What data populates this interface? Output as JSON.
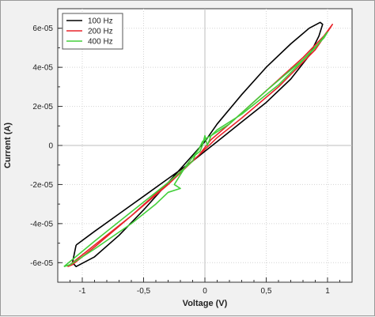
{
  "chart_data": {
    "type": "line",
    "title": "",
    "xlabel": "Voltage (V)",
    "ylabel": "Current (A)",
    "xlim": [
      -1.2,
      1.2
    ],
    "ylim": [
      -7e-05,
      7e-05
    ],
    "grid": true,
    "legend_position": "top-left",
    "x_ticks": [
      {
        "value": -1,
        "label": "-1"
      },
      {
        "value": -0.5,
        "label": "-0,5"
      },
      {
        "value": 0,
        "label": "0"
      },
      {
        "value": 0.5,
        "label": "0,5"
      },
      {
        "value": 1,
        "label": "1"
      }
    ],
    "y_ticks": [
      {
        "value": 6e-05,
        "label": "6e-05"
      },
      {
        "value": 4e-05,
        "label": "4e-05"
      },
      {
        "value": 2e-05,
        "label": "2e-05"
      },
      {
        "value": 0,
        "label": "0"
      },
      {
        "value": -2e-05,
        "label": "-2e-05"
      },
      {
        "value": -4e-05,
        "label": "-4e-05"
      },
      {
        "value": -6e-05,
        "label": "-6e-05"
      }
    ],
    "series": [
      {
        "name": "100 Hz",
        "color": "#000000",
        "x": [
          -1.05,
          -0.9,
          -0.7,
          -0.5,
          -0.3,
          -0.1,
          0,
          0.1,
          0.3,
          0.5,
          0.7,
          0.85,
          0.93,
          0.96,
          0.94,
          0.85,
          0.7,
          0.5,
          0.3,
          0.1,
          0,
          -0.1,
          -0.3,
          -0.5,
          -0.7,
          -0.9,
          -1.05,
          -1.08,
          -1.05
        ],
        "y": [
          -5.1e-05,
          -4.4e-05,
          -3.5e-05,
          -2.6e-05,
          -1.7e-05,
          -8e-06,
          -3e-06,
          2e-06,
          1.2e-05,
          2.2e-05,
          3.4e-05,
          4.6e-05,
          5.6e-05,
          6.2e-05,
          6.3e-05,
          6e-05,
          5.2e-05,
          4e-05,
          2.6e-05,
          1.1e-05,
          2e-06,
          -5e-06,
          -1.9e-05,
          -3.3e-05,
          -4.6e-05,
          -5.7e-05,
          -6.2e-05,
          -6e-05,
          -5.1e-05
        ]
      },
      {
        "name": "200 Hz",
        "color": "#e8232a",
        "x": [
          -1.12,
          -0.9,
          -0.6,
          -0.3,
          -0.1,
          0,
          0.1,
          0.3,
          0.6,
          0.9,
          1.02,
          1.04,
          0.97,
          0.8,
          0.5,
          0.2,
          0.05,
          0,
          -0.05,
          -0.3,
          -0.6,
          -0.9,
          -1.08,
          -1.12
        ],
        "y": [
          -6.2e-05,
          -5.1e-05,
          -3.6e-05,
          -2e-05,
          -8e-06,
          -2e-06,
          4e-06,
          1.4e-05,
          3e-05,
          4.9e-05,
          6e-05,
          6.2e-05,
          5.6e-05,
          4.5e-05,
          2.8e-05,
          1.1e-05,
          3e-06,
          -1e-06,
          -5e-06,
          -1.9e-05,
          -3.6e-05,
          -5.2e-05,
          -6.1e-05,
          -6.2e-05
        ]
      },
      {
        "name": "400 Hz",
        "color": "#43cf3a",
        "x": [
          -1.15,
          -0.9,
          -0.6,
          -0.3,
          -0.1,
          -0.08,
          -0.04,
          -0.02,
          0,
          0.02,
          0.05,
          0.1,
          0.3,
          0.6,
          0.9,
          1.0,
          0.97,
          0.8,
          0.5,
          0.2,
          0.05,
          0.02,
          -0.02,
          -0.05,
          -0.1,
          -0.15,
          -0.2,
          -0.25,
          -0.2,
          -0.3,
          -0.4,
          -0.6,
          -0.9,
          -1.1,
          -1.15
        ],
        "y": [
          -6.2e-05,
          -4.9e-05,
          -3.4e-05,
          -1.9e-05,
          -8e-06,
          -5e-06,
          -3e-06,
          0,
          5e-06,
          0,
          5e-06,
          8e-06,
          1.6e-05,
          3.1e-05,
          5e-05,
          5.8e-05,
          5.5e-05,
          4.4e-05,
          2.8e-05,
          1.1e-05,
          5e-06,
          4e-06,
          2e-06,
          -2e-06,
          -6e-06,
          -1e-05,
          -1.5e-05,
          -2e-05,
          -2.2e-05,
          -2.4e-05,
          -3e-05,
          -4e-05,
          -5.3e-05,
          -6.1e-05,
          -6.2e-05
        ]
      }
    ]
  }
}
